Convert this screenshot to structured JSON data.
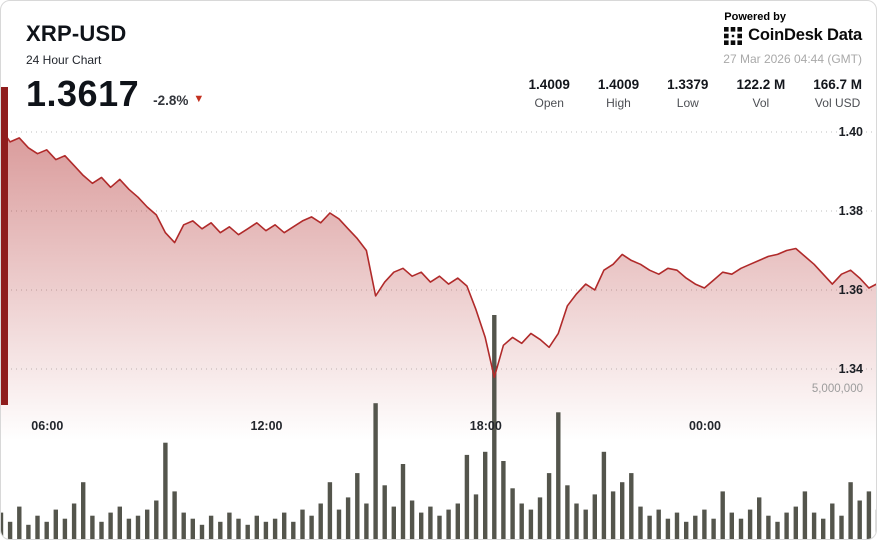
{
  "widget": {
    "symbol": "XRP-USD",
    "subtitle": "24 Hour Chart",
    "price": "1.3617",
    "change": "-2.8%",
    "change_direction": "down",
    "powered_by": "Powered by",
    "brand": "CoinDesk Data",
    "timestamp": "27 Mar 2026 04:44 (GMT)",
    "stats": [
      {
        "value": "1.4009",
        "label": "Open"
      },
      {
        "value": "1.4009",
        "label": "High"
      },
      {
        "value": "1.3379",
        "label": "Low"
      },
      {
        "value": "122.2 M",
        "label": "Vol"
      },
      {
        "value": "166.7 M",
        "label": "Vol USD"
      }
    ],
    "icons": {
      "down_triangle": "▼"
    },
    "colors": {
      "accent_red": "#b02a2a",
      "dark_red_bar": "#8f1d1d",
      "volume_bar": "#54554c",
      "grid_gray": "#bfbfbf",
      "text_dark": "#1b1e24",
      "text_gray": "#9c9c9c"
    }
  },
  "chart_data": {
    "type": "area",
    "title": "XRP-USD 24 Hour Chart",
    "start_time": "04:44",
    "interval_minutes": 15,
    "x_ticks": [
      "06:00",
      "12:00",
      "18:00",
      "00:00"
    ],
    "y_ticks": [
      {
        "label": "1.40",
        "value": 1.4
      },
      {
        "label": "1.38",
        "value": 1.38
      },
      {
        "label": "1.36",
        "value": 1.36
      },
      {
        "label": "1.34",
        "value": 1.34
      }
    ],
    "volume_axis": {
      "label": "5,000,000",
      "value_millions": 5
    },
    "ylim": [
      1.332,
      1.404
    ],
    "grid": true,
    "legend": false,
    "line_color": "#b02a2a",
    "prices": [
      1.4009,
      1.3975,
      1.3985,
      1.396,
      1.3945,
      1.3955,
      1.393,
      1.394,
      1.3915,
      1.389,
      1.387,
      1.3885,
      1.386,
      1.388,
      1.3855,
      1.3835,
      1.381,
      1.379,
      1.3745,
      1.372,
      1.3765,
      1.3775,
      1.3755,
      1.377,
      1.3745,
      1.376,
      1.374,
      1.3755,
      1.377,
      1.375,
      1.3765,
      1.3745,
      1.376,
      1.3775,
      1.3785,
      1.377,
      1.3795,
      1.378,
      1.3755,
      1.373,
      1.37,
      1.3585,
      1.362,
      1.3645,
      1.3655,
      1.3635,
      1.3645,
      1.362,
      1.3635,
      1.3615,
      1.363,
      1.361,
      1.355,
      1.348,
      1.3379,
      1.346,
      1.348,
      1.3465,
      1.349,
      1.3475,
      1.3455,
      1.349,
      1.356,
      1.359,
      1.3615,
      1.36,
      1.365,
      1.3665,
      1.369,
      1.3675,
      1.3665,
      1.365,
      1.364,
      1.3655,
      1.365,
      1.363,
      1.3615,
      1.3605,
      1.3625,
      1.3645,
      1.364,
      1.3655,
      1.3665,
      1.3675,
      1.3685,
      1.369,
      1.37,
      1.3705,
      1.3685,
      1.3665,
      1.364,
      1.3615,
      1.364,
      1.365,
      1.363,
      1.3605,
      1.3617
    ],
    "volumes_millions": [
      0.9,
      0.6,
      1.1,
      0.5,
      0.8,
      0.6,
      1.0,
      0.7,
      1.2,
      1.9,
      0.8,
      0.6,
      0.9,
      1.1,
      0.7,
      0.8,
      1.0,
      1.3,
      3.2,
      1.6,
      0.9,
      0.7,
      0.5,
      0.8,
      0.6,
      0.9,
      0.7,
      0.5,
      0.8,
      0.6,
      0.7,
      0.9,
      0.6,
      1.0,
      0.8,
      1.2,
      1.9,
      1.0,
      1.4,
      2.2,
      1.2,
      4.5,
      1.8,
      1.1,
      2.5,
      1.3,
      0.9,
      1.1,
      0.8,
      1.0,
      1.2,
      2.8,
      1.5,
      2.9,
      7.4,
      2.6,
      1.7,
      1.2,
      1.0,
      1.4,
      2.2,
      4.2,
      1.8,
      1.2,
      1.0,
      1.5,
      2.9,
      1.6,
      1.9,
      2.2,
      1.1,
      0.8,
      1.0,
      0.7,
      0.9,
      0.6,
      0.8,
      1.0,
      0.7,
      1.6,
      0.9,
      0.7,
      1.0,
      1.4,
      0.8,
      0.6,
      0.9,
      1.1,
      1.6,
      0.9,
      0.7,
      1.2,
      0.8,
      1.9,
      1.3,
      1.6,
      1.0
    ]
  }
}
